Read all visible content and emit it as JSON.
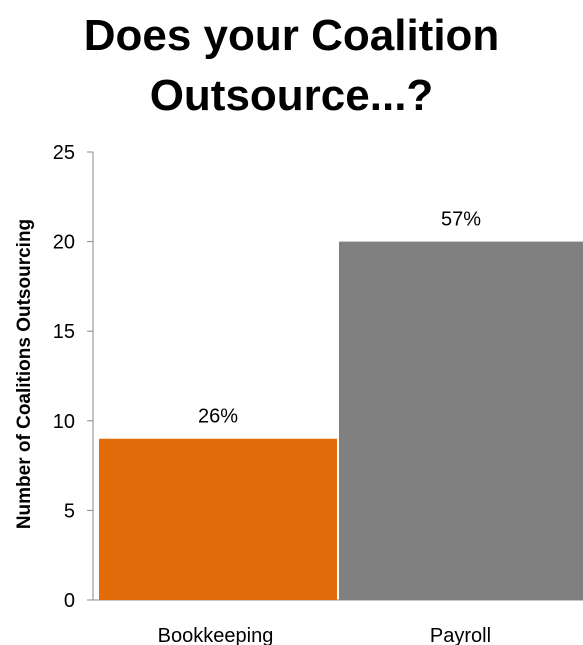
{
  "title_lines": [
    "Does your Coalition",
    "Outsource...?"
  ],
  "chart_data": {
    "type": "bar",
    "title": "Does your Coalition Outsource...?",
    "categories": [
      "Bookkeeping",
      "Payroll"
    ],
    "values": [
      9,
      20
    ],
    "data_labels": [
      "26%",
      "57%"
    ],
    "colors": [
      "#E36C0A",
      "#808080"
    ],
    "xlabel": "",
    "ylabel": "Number of Coalitions Outsourcing",
    "ylim": [
      0,
      25
    ],
    "yticks": [
      0,
      5,
      10,
      15,
      20,
      25
    ],
    "grid": false,
    "legend": "none"
  }
}
